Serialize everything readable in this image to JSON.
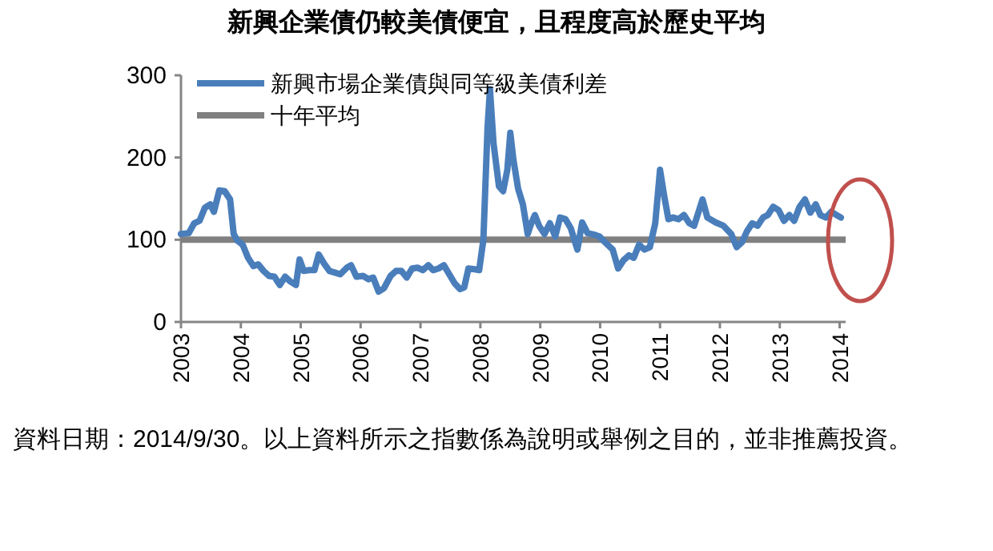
{
  "chart_data": {
    "type": "line",
    "title": "新興企業債仍較美債便宜，且程度高於歷史平均",
    "x": [
      2003.0,
      2003.13,
      2003.22,
      2003.31,
      2003.4,
      2003.49,
      2003.55,
      2003.64,
      2003.73,
      2003.82,
      2003.88,
      2003.94,
      2004.03,
      2004.12,
      2004.21,
      2004.29,
      2004.38,
      2004.47,
      2004.56,
      2004.65,
      2004.74,
      2004.83,
      2004.92,
      2004.98,
      2005.05,
      2005.14,
      2005.23,
      2005.3,
      2005.39,
      2005.48,
      2005.57,
      2005.66,
      2005.77,
      2005.84,
      2005.93,
      2006.04,
      2006.13,
      2006.21,
      2006.3,
      2006.39,
      2006.5,
      2006.59,
      2006.68,
      2006.77,
      2006.86,
      2006.95,
      2007.04,
      2007.13,
      2007.21,
      2007.3,
      2007.39,
      2007.48,
      2007.57,
      2007.66,
      2007.73,
      2007.8,
      2007.91,
      2007.98,
      2008.05,
      2008.12,
      2008.16,
      2008.22,
      2008.31,
      2008.38,
      2008.45,
      2008.5,
      2008.55,
      2008.63,
      2008.71,
      2008.79,
      2008.85,
      2008.91,
      2008.98,
      2009.07,
      2009.16,
      2009.25,
      2009.33,
      2009.42,
      2009.51,
      2009.62,
      2009.7,
      2009.79,
      2009.91,
      2009.99,
      2010.08,
      2010.21,
      2010.3,
      2010.39,
      2010.48,
      2010.56,
      2010.65,
      2010.74,
      2010.83,
      2010.92,
      2011.0,
      2011.07,
      2011.14,
      2011.22,
      2011.31,
      2011.4,
      2011.49,
      2011.57,
      2011.71,
      2011.79,
      2011.93,
      2012.06,
      2012.19,
      2012.28,
      2012.37,
      2012.45,
      2012.54,
      2012.63,
      2012.72,
      2012.8,
      2012.89,
      2012.98,
      2013.07,
      2013.16,
      2013.24,
      2013.33,
      2013.42,
      2013.51,
      2013.6,
      2013.68,
      2013.77,
      2013.86,
      2013.95,
      2014.02
    ],
    "series": [
      {
        "name": "新興市場企業債與同等級美債利差",
        "color": "#4a7ebb",
        "values": [
          107,
          108,
          120,
          123,
          139,
          143,
          134,
          160,
          159,
          149,
          107,
          99,
          94,
          78,
          68,
          70,
          62,
          56,
          55,
          45,
          55,
          49,
          45,
          76,
          62,
          63,
          63,
          82,
          71,
          62,
          60,
          58,
          66,
          69,
          55,
          56,
          52,
          54,
          37,
          41,
          56,
          62,
          62,
          54,
          65,
          66,
          63,
          69,
          63,
          65,
          69,
          58,
          47,
          40,
          42,
          65,
          64,
          63,
          100,
          237,
          283,
          217,
          165,
          159,
          185,
          230,
          198,
          162,
          143,
          107,
          120,
          130,
          117,
          107,
          120,
          104,
          127,
          125,
          114,
          88,
          121,
          108,
          106,
          104,
          97,
          88,
          65,
          75,
          81,
          78,
          94,
          88,
          91,
          120,
          185,
          153,
          125,
          127,
          125,
          130,
          120,
          117,
          149,
          127,
          121,
          117,
          107,
          91,
          97,
          110,
          120,
          117,
          127,
          130,
          140,
          136,
          123,
          130,
          123,
          140,
          149,
          133,
          143,
          130,
          127,
          134,
          130,
          127
        ]
      }
    ],
    "xlim": [
      2003,
      2014.1
    ],
    "xticks": [
      2003,
      2004,
      2005,
      2006,
      2007,
      2008,
      2009,
      2010,
      2011,
      2012,
      2013,
      2014
    ],
    "ylim": [
      0,
      300
    ],
    "yticks": [
      0,
      100,
      200,
      300
    ],
    "ref_lines": [
      {
        "axis": "y",
        "value": 100,
        "label": "十年平均",
        "color": "#808080"
      }
    ],
    "legend": "top left",
    "annotations": [
      "資料日期：2014/9/30。以上資料所示之指數係為說明或舉例之目的，並非推薦投資。"
    ]
  }
}
